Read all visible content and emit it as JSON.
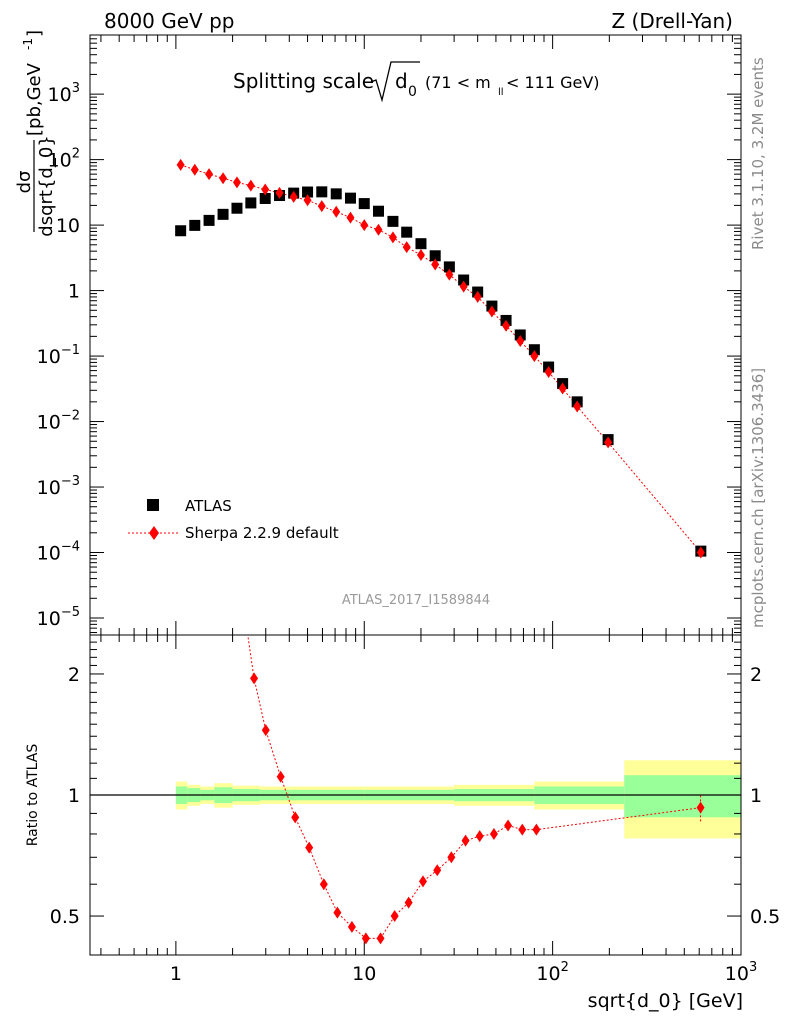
{
  "header": {
    "left": "8000 GeV pp",
    "right": "Z (Drell-Yan)"
  },
  "plot_title": {
    "main": "Splitting scale",
    "sqrt_var": "d",
    "sqrt_sub": "0",
    "range_open": "(71 < m",
    "range_sub": "ll",
    "range_close": " < 111 GeV)"
  },
  "side_labels": {
    "rivet": "Rivet 3.1.10,  3.2M events",
    "mcplots": "mcplots.cern.ch [arXiv:1306.3436]"
  },
  "analysis_id": "ATLAS_2017_I1589844",
  "y_axis_main": {
    "numerator": "dσ",
    "denominator": "dsqrt{d_0}",
    "units": "[pb,GeV",
    "units_exp": "-1",
    "units_close": "]"
  },
  "y_axis_ratio": "Ratio to ATLAS",
  "x_axis_label": "sqrt{d_0} [GeV]",
  "legend": {
    "data_label": "ATLAS",
    "mc_label": "Sherpa 2.2.9 default"
  },
  "colors": {
    "data": "#000000",
    "mc": "#ff0000",
    "band_inner": "#99ff99",
    "band_outer": "#ffff99"
  },
  "ticks": {
    "main_y": [
      {
        "base": "10",
        "exp": "3",
        "v": 1000
      },
      {
        "base": "10",
        "exp": "2",
        "v": 100
      },
      {
        "base": "10",
        "exp": "",
        "v": 10
      },
      {
        "base": "1",
        "exp": "",
        "v": 1
      },
      {
        "base": "10",
        "exp": "−1",
        "v": 0.1
      },
      {
        "base": "10",
        "exp": "−2",
        "v": 0.01
      },
      {
        "base": "10",
        "exp": "−3",
        "v": 0.001
      },
      {
        "base": "10",
        "exp": "−4",
        "v": 0.0001
      },
      {
        "base": "10",
        "exp": "−5",
        "v": 1e-05
      }
    ],
    "ratio_y": [
      {
        "label": "2",
        "v": 2
      },
      {
        "label": "1",
        "v": 1
      },
      {
        "label": "0.5",
        "v": 0.5
      }
    ],
    "x": [
      {
        "base": "1",
        "exp": "",
        "v": 1
      },
      {
        "base": "10",
        "exp": "",
        "v": 10
      },
      {
        "base": "10",
        "exp": "2",
        "v": 100
      },
      {
        "base": "10",
        "exp": "3",
        "v": 1000
      }
    ]
  },
  "chart_data": {
    "type": "scatter",
    "x_scale": "log",
    "y_scale": "log",
    "xlim": [
      0.35,
      1000
    ],
    "ylim": [
      5.5e-06,
      8000
    ],
    "ratio_ylim": [
      0.4,
      2.5
    ],
    "x": [
      1.06,
      1.26,
      1.5,
      1.78,
      2.11,
      2.5,
      2.98,
      3.55,
      4.22,
      5.0,
      5.95,
      7.1,
      8.45,
      10.0,
      11.9,
      14.2,
      16.8,
      20.0,
      23.8,
      28.3,
      33.7,
      40.0,
      47.6,
      56.6,
      67.3,
      80.0,
      95.2,
      113.0,
      135.0,
      197.0,
      612.0
    ],
    "series": [
      {
        "name": "ATLAS",
        "values": [
          8.2,
          9.9,
          11.8,
          14.6,
          18.1,
          21.8,
          25.5,
          28.3,
          30.8,
          32.0,
          32.2,
          30.0,
          25.8,
          21.3,
          16.3,
          11.4,
          7.8,
          5.2,
          3.4,
          2.3,
          1.45,
          0.95,
          0.58,
          0.35,
          0.21,
          0.125,
          0.068,
          0.038,
          0.02,
          0.0053,
          0.000105
        ]
      },
      {
        "name": "Sherpa 2.2.9 default",
        "values": [
          83,
          70,
          60,
          52,
          45,
          40,
          35,
          31,
          27,
          24,
          19.5,
          16,
          13,
          10,
          8.5,
          6.5,
          4.6,
          3.5,
          2.5,
          1.75,
          1.15,
          0.8,
          0.48,
          0.29,
          0.17,
          0.1,
          0.057,
          0.032,
          0.017,
          0.0048,
          0.0001
        ]
      }
    ],
    "ratio": {
      "x": [
        2.6,
        3.0,
        3.6,
        4.3,
        5.1,
        6.1,
        7.2,
        8.6,
        10.2,
        12.2,
        14.5,
        17.2,
        20.5,
        24.4,
        29.0,
        34.5,
        41.0,
        48.8,
        58.0,
        69.0,
        82.0,
        610.0
      ],
      "values": [
        1.95,
        1.45,
        1.11,
        0.88,
        0.74,
        0.6,
        0.51,
        0.47,
        0.44,
        0.44,
        0.5,
        0.54,
        0.61,
        0.65,
        0.7,
        0.77,
        0.79,
        0.8,
        0.84,
        0.82,
        0.82,
        0.93
      ]
    },
    "ratio_band": {
      "edges": [
        1.0,
        1.15,
        1.35,
        1.6,
        2.0,
        2.8,
        4.0,
        10.0,
        30.0,
        80.0,
        240.0,
        1000.0
      ],
      "inner": [
        0.05,
        0.04,
        0.03,
        0.045,
        0.035,
        0.03,
        0.03,
        0.03,
        0.035,
        0.05,
        0.12
      ],
      "outer": [
        0.08,
        0.06,
        0.05,
        0.07,
        0.055,
        0.05,
        0.05,
        0.05,
        0.06,
        0.08,
        0.22
      ]
    }
  }
}
